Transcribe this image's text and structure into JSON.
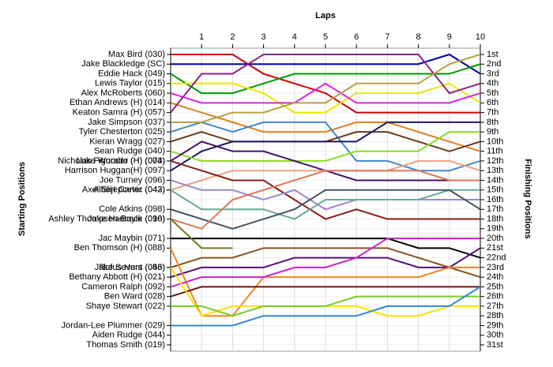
{
  "chart_data": {
    "type": "line",
    "x_label": "Laps",
    "y_label": "Starting Positions",
    "y2_label": "Finishing Positions",
    "x": [
      0,
      1,
      2,
      3,
      4,
      5,
      6,
      7,
      8,
      9,
      10
    ],
    "xlim": [
      0,
      10
    ],
    "xticks": [
      1,
      2,
      3,
      4,
      5,
      6,
      7,
      8,
      9,
      10
    ],
    "ylim": [
      1,
      31
    ],
    "y_reversed": true,
    "grid": true,
    "y2lim": [
      1,
      31
    ],
    "y2ticks": [
      {
        "value": 1,
        "label": "1st"
      },
      {
        "value": 2,
        "label": "2nd"
      },
      {
        "value": 3,
        "label": "3rd"
      },
      {
        "value": 4,
        "label": "4th"
      },
      {
        "value": 5,
        "label": "5th"
      },
      {
        "value": 6,
        "label": "6th"
      },
      {
        "value": 7,
        "label": "7th"
      },
      {
        "value": 8,
        "label": "8th"
      },
      {
        "value": 9,
        "label": "9th"
      },
      {
        "value": 10,
        "label": "10th"
      },
      {
        "value": 11,
        "label": "11th"
      },
      {
        "value": 12,
        "label": "12th"
      },
      {
        "value": 13,
        "label": "13th"
      },
      {
        "value": 14,
        "label": "14th"
      },
      {
        "value": 15,
        "label": "15th"
      },
      {
        "value": 16,
        "label": "16th"
      },
      {
        "value": 17,
        "label": "17th"
      },
      {
        "value": 18,
        "label": "18th"
      },
      {
        "value": 19,
        "label": "19th"
      },
      {
        "value": 20,
        "label": "20th"
      },
      {
        "value": 21,
        "label": "21st"
      },
      {
        "value": 22,
        "label": "22nd"
      },
      {
        "value": 23,
        "label": "23rd"
      },
      {
        "value": 24,
        "label": "24th"
      },
      {
        "value": 25,
        "label": "25th"
      },
      {
        "value": 26,
        "label": "26th"
      },
      {
        "value": 27,
        "label": "27th"
      },
      {
        "value": 28,
        "label": "28th"
      },
      {
        "value": 29,
        "label": "29th"
      },
      {
        "value": 30,
        "label": "30th"
      },
      {
        "value": 31,
        "label": "31st"
      }
    ],
    "series": [
      {
        "name": "Max Bird (030)",
        "color": "#cc0000",
        "values": [
          1,
          1,
          1,
          3,
          4,
          5,
          7,
          7,
          7,
          7,
          7
        ]
      },
      {
        "name": "Jake Blackledge (SC)",
        "color": "#0000aa",
        "values": [
          2,
          2,
          2,
          2,
          2,
          2,
          2,
          2,
          2,
          1,
          3
        ]
      },
      {
        "name": "Eddie Hack (049)",
        "color": "#009900",
        "values": [
          3,
          5,
          5,
          4,
          3,
          3,
          3,
          3,
          3,
          3,
          2
        ]
      },
      {
        "name": "Lewis Taylor (015)",
        "color": "#e8e800",
        "values": [
          4,
          4,
          4,
          5,
          7,
          7,
          5,
          5,
          5,
          4,
          6
        ]
      },
      {
        "name": "Alex McRoberts (060)",
        "color": "#dd22dd",
        "values": [
          5,
          6,
          6,
          6,
          6,
          4,
          6,
          6,
          6,
          6,
          5
        ]
      },
      {
        "name": "Ethan Andrews (H) (014)",
        "color": "#e08020",
        "values": [
          6,
          7,
          8,
          9,
          9,
          9,
          8,
          8,
          9,
          10,
          11
        ]
      },
      {
        "name": "Keaton Samra (H) (057)",
        "color": "#882288",
        "values": [
          7,
          3,
          3,
          1,
          1,
          1,
          1,
          1,
          1,
          5,
          4
        ]
      },
      {
        "name": "Tyler Chesterton (025)",
        "color": "#4488cc",
        "values": [
          9,
          8,
          9,
          8,
          8,
          8,
          12,
          12,
          13,
          13,
          12
        ]
      },
      {
        "name": "Kieran Wragg (027)",
        "color": "#6b3a1a",
        "values": [
          10,
          9,
          10,
          10,
          10,
          10,
          9,
          9,
          10,
          11,
          10
        ]
      },
      {
        "name": "Harrison Huggan(H) (097)",
        "color": "#1a1a66",
        "values": [
          13,
          11,
          10,
          10,
          10,
          10,
          10,
          8,
          8,
          8,
          8
        ]
      },
      {
        "name": "Jake Simpson (037)",
        "color": "#b8a040",
        "values": [
          8,
          8,
          7,
          7,
          6,
          6,
          4,
          4,
          4,
          2,
          1
        ]
      },
      {
        "name": "Sean Rudge (040)",
        "color": "#88dd22",
        "values": [
          11,
          12,
          12,
          12,
          12,
          12,
          11,
          11,
          11,
          9,
          9
        ]
      },
      {
        "name": "Luke Wooder (H) (003)",
        "color": "#441166",
        "values": [
          12,
          10,
          11,
          11,
          12,
          13,
          14,
          14,
          14,
          14,
          14
        ]
      },
      {
        "name": "Axel Slijepcevic (042)",
        "color": "#f0a080",
        "values": [
          15,
          14,
          13,
          13,
          13,
          13,
          13,
          13,
          12,
          12,
          13
        ]
      },
      {
        "name": "Nicholas Figurado (H) (074)",
        "color": "#8b1a1a",
        "values": [
          12,
          13,
          14,
          14,
          16,
          18,
          17,
          18,
          18,
          18,
          18
        ]
      },
      {
        "name": "Joe Turney (096)",
        "color": "#9988cc",
        "values": [
          14,
          15,
          15,
          16,
          15,
          17,
          16,
          16,
          16,
          16,
          16
        ]
      },
      {
        "name": "Albert Carter (043)",
        "color": "#66aa99",
        "values": [
          15,
          17,
          17,
          17,
          18,
          16,
          16,
          16,
          16,
          15,
          15
        ]
      },
      {
        "name": "Cole Atkins (098)",
        "color": "#445566",
        "values": [
          17,
          18,
          19,
          18,
          17,
          15,
          15,
          15,
          15,
          15,
          17
        ]
      },
      {
        "name": "Jake Hancock (016)",
        "color": "#dd7755",
        "values": [
          18,
          19,
          16,
          15,
          14,
          13,
          13,
          13,
          13,
          14,
          14
        ]
      },
      {
        "name": "Jac Maybin (071)",
        "color": "#000000",
        "values": [
          20,
          20,
          20,
          20,
          20,
          20,
          20,
          20,
          21,
          21,
          22
        ]
      },
      {
        "name": "Ashley Thompson-Boyle (090)",
        "color": "#777722",
        "values": [
          18,
          21,
          21,
          null,
          null,
          null,
          null,
          null,
          null,
          null,
          null
        ]
      },
      {
        "name": "Jake Severs (046)",
        "color": "#885522",
        "values": [
          23,
          22,
          22,
          21,
          21,
          21,
          21,
          21,
          22,
          23,
          24
        ]
      },
      {
        "name": "Bethany Abbott (H) (021)",
        "color": "#551177",
        "values": [
          24,
          23,
          23,
          23,
          22,
          22,
          22,
          22,
          23,
          23,
          21
        ]
      },
      {
        "name": "Ben Thomson (H) (088)",
        "color": "#ee8822",
        "values": [
          21,
          28,
          28,
          24,
          24,
          24,
          24,
          24,
          24,
          23,
          23
        ]
      },
      {
        "name": "Ben Ward (028)",
        "color": "#771111",
        "values": [
          26,
          25,
          25,
          25,
          25,
          25,
          25,
          25,
          25,
          25,
          25
        ]
      },
      {
        "name": "Cameron Ralph (092)",
        "color": "#cc22cc",
        "values": [
          25,
          24,
          24,
          24,
          23,
          23,
          22,
          20,
          20,
          20,
          20
        ]
      },
      {
        "name": "Rufus Hunt (053)",
        "color": "#ffe000",
        "values": [
          23,
          28,
          27,
          27,
          27,
          27,
          27,
          28,
          28,
          27,
          27
        ]
      },
      {
        "name": "Shaye Stewart (022)",
        "color": "#77cc22",
        "values": [
          27,
          27,
          28,
          27,
          27,
          27,
          26,
          26,
          26,
          26,
          26
        ]
      },
      {
        "name": "Jordan-Lee Plummer (029)",
        "color": "#3388dd",
        "values": [
          29,
          29,
          29,
          28,
          28,
          28,
          28,
          27,
          27,
          27,
          25
        ]
      },
      {
        "name": "Aiden Rudge (044)",
        "color": "#888888",
        "values": [
          30,
          null,
          null,
          null,
          null,
          null,
          null,
          null,
          null,
          null,
          null
        ]
      },
      {
        "name": "Thomas Smith (019)",
        "color": "#888888",
        "values": [
          31,
          null,
          null,
          null,
          null,
          null,
          null,
          null,
          null,
          null,
          null
        ]
      }
    ]
  }
}
